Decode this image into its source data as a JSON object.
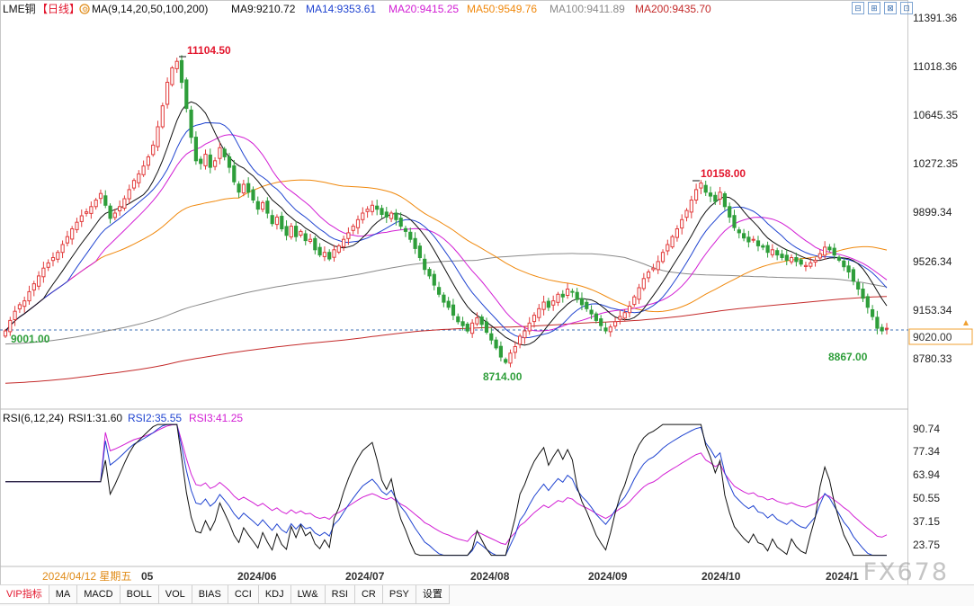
{
  "header": {
    "symbol": "LME铜",
    "period": "【日线】",
    "ma_params": "MA(9,14,20,50,100,200)",
    "ma_items": [
      {
        "label": "MA9:9210.72",
        "color": "#111111"
      },
      {
        "label": "MA14:9353.61",
        "color": "#1f43d0"
      },
      {
        "label": "MA20:9415.25",
        "color": "#d21ed4"
      },
      {
        "label": "MA50:9549.76",
        "color": "#f0880c"
      },
      {
        "label": "MA100:9411.89",
        "color": "#8a8a8a"
      },
      {
        "label": "MA200:9435.70",
        "color": "#c42b2b"
      }
    ]
  },
  "rsi_header": {
    "title": "RSI(6,12,24)",
    "items": [
      {
        "label": "RSI1:31.60",
        "color": "#111111"
      },
      {
        "label": "RSI2:35.55",
        "color": "#1f43d0"
      },
      {
        "label": "RSI3:41.25",
        "color": "#d21ed4"
      }
    ]
  },
  "price_axis": [
    "11391.36",
    "11018.36",
    "10645.35",
    "10272.35",
    "9899.34",
    "9526.34",
    "9153.34",
    "8780.33"
  ],
  "current_price_label": "9020.00",
  "rsi_axis": [
    "90.74",
    "77.34",
    "63.94",
    "50.55",
    "37.15",
    "23.75"
  ],
  "annotations": {
    "high": "11104.50",
    "high2": "10158.00",
    "low_start": "9001.00",
    "low1": "8714.00",
    "low2": "8867.00"
  },
  "x_axis": {
    "cursor_date": "2024/04/12 星期五",
    "partial_label": "05",
    "labels": [
      "2024/06",
      "2024/07",
      "2024/08",
      "2024/09",
      "2024/10",
      "2024/1"
    ]
  },
  "tabs": [
    "VIP指标",
    "MA",
    "MACD",
    "BOLL",
    "VOL",
    "BIAS",
    "CCI",
    "KDJ",
    "LW&",
    "RSI",
    "CR",
    "PSY",
    "设置"
  ],
  "watermark": "FX678",
  "window_buttons": [
    "⊟",
    "⊞",
    "⊠",
    "⊡"
  ],
  "colors": {
    "up": "#e23b3b",
    "down": "#2e9e3a",
    "ma9": "#111111",
    "ma14": "#1f43d0",
    "ma20": "#d21ed4",
    "ma50": "#f0880c",
    "ma100": "#8a8a8a",
    "ma200": "#c42b2b"
  },
  "chart_data": {
    "type": "candlestick",
    "y_range": [
      8700,
      11450
    ],
    "closes": [
      9000,
      9080,
      9150,
      9200,
      9230,
      9300,
      9360,
      9420,
      9480,
      9520,
      9560,
      9600,
      9660,
      9720,
      9780,
      9830,
      9880,
      9910,
      9950,
      10000,
      10050,
      9960,
      9860,
      9900,
      9950,
      10010,
      10080,
      10150,
      10200,
      10260,
      10330,
      10420,
      10560,
      10720,
      10900,
      11010,
      11060,
      10900,
      10700,
      10480,
      10300,
      10280,
      10350,
      10250,
      10300,
      10400,
      10330,
      10250,
      10140,
      10060,
      10120,
      10060,
      10000,
      9930,
      9980,
      9900,
      9820,
      9870,
      9780,
      9730,
      9800,
      9720,
      9760,
      9690,
      9700,
      9620,
      9580,
      9600,
      9550,
      9620,
      9650,
      9700,
      9750,
      9800,
      9850,
      9900,
      9930,
      9960,
      9930,
      9890,
      9870,
      9900,
      9850,
      9800,
      9760,
      9700,
      9630,
      9560,
      9470,
      9420,
      9350,
      9280,
      9220,
      9180,
      9120,
      9070,
      9040,
      9000,
      9060,
      9100,
      9050,
      8990,
      8930,
      8870,
      8800,
      8760,
      8830,
      8880,
      8960,
      9000,
      9060,
      9120,
      9170,
      9220,
      9180,
      9230,
      9280,
      9260,
      9320,
      9300,
      9240,
      9200,
      9170,
      9130,
      9080,
      9040,
      9000,
      9030,
      9070,
      9110,
      9140,
      9190,
      9260,
      9330,
      9400,
      9450,
      9480,
      9530,
      9600,
      9660,
      9720,
      9780,
      9850,
      9920,
      10000,
      10080,
      10130,
      10060,
      10030,
      9990,
      10060,
      9950,
      9870,
      9790,
      9750,
      9710,
      9680,
      9700,
      9650,
      9640,
      9600,
      9620,
      9580,
      9560,
      9540,
      9560,
      9530,
      9510,
      9500,
      9520,
      9540,
      9590,
      9640,
      9620,
      9580,
      9540,
      9490,
      9450,
      9380,
      9320,
      9250,
      9180,
      9110,
      9020,
      9000,
      9020
    ]
  }
}
